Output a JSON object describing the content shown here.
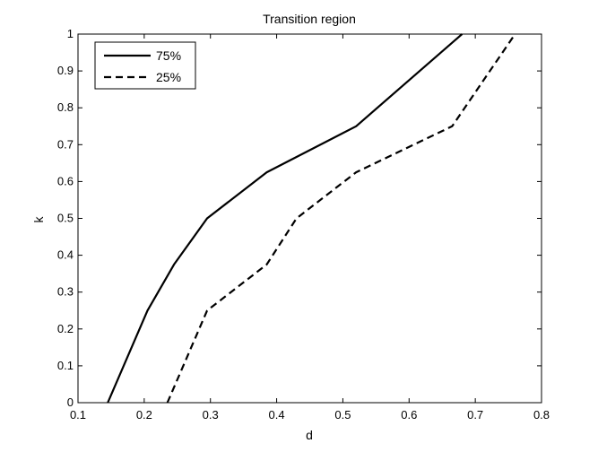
{
  "chart_data": {
    "type": "line",
    "title": "Transition region",
    "xlabel": "d",
    "ylabel": "k",
    "xlim": [
      0.1,
      0.8
    ],
    "ylim": [
      0,
      1
    ],
    "xticks": [
      0.1,
      0.2,
      0.3,
      0.4,
      0.5,
      0.6,
      0.7,
      0.8
    ],
    "xtick_labels": [
      "0.1",
      "0.2",
      "0.3",
      "0.4",
      "0.5",
      "0.6",
      "0.7",
      "0.8"
    ],
    "yticks": [
      0,
      0.1,
      0.2,
      0.3,
      0.4,
      0.5,
      0.6,
      0.7,
      0.8,
      0.9,
      1
    ],
    "ytick_labels": [
      "0",
      "0.1",
      "0.2",
      "0.3",
      "0.4",
      "0.5",
      "0.6",
      "0.7",
      "0.8",
      "0.9",
      "1"
    ],
    "grid": false,
    "legend_position": "top-left",
    "series": [
      {
        "name": "75%",
        "line_style": "solid",
        "color": "#000000",
        "x": [
          0.145,
          0.205,
          0.245,
          0.295,
          0.385,
          0.52,
          0.68
        ],
        "y": [
          0.0,
          0.25,
          0.375,
          0.5,
          0.625,
          0.75,
          1.0
        ]
      },
      {
        "name": "25%",
        "line_style": "dashed",
        "color": "#000000",
        "x": [
          0.235,
          0.295,
          0.385,
          0.43,
          0.52,
          0.665,
          0.76
        ],
        "y": [
          0.0,
          0.25,
          0.375,
          0.5,
          0.625,
          0.75,
          1.0
        ]
      }
    ]
  }
}
